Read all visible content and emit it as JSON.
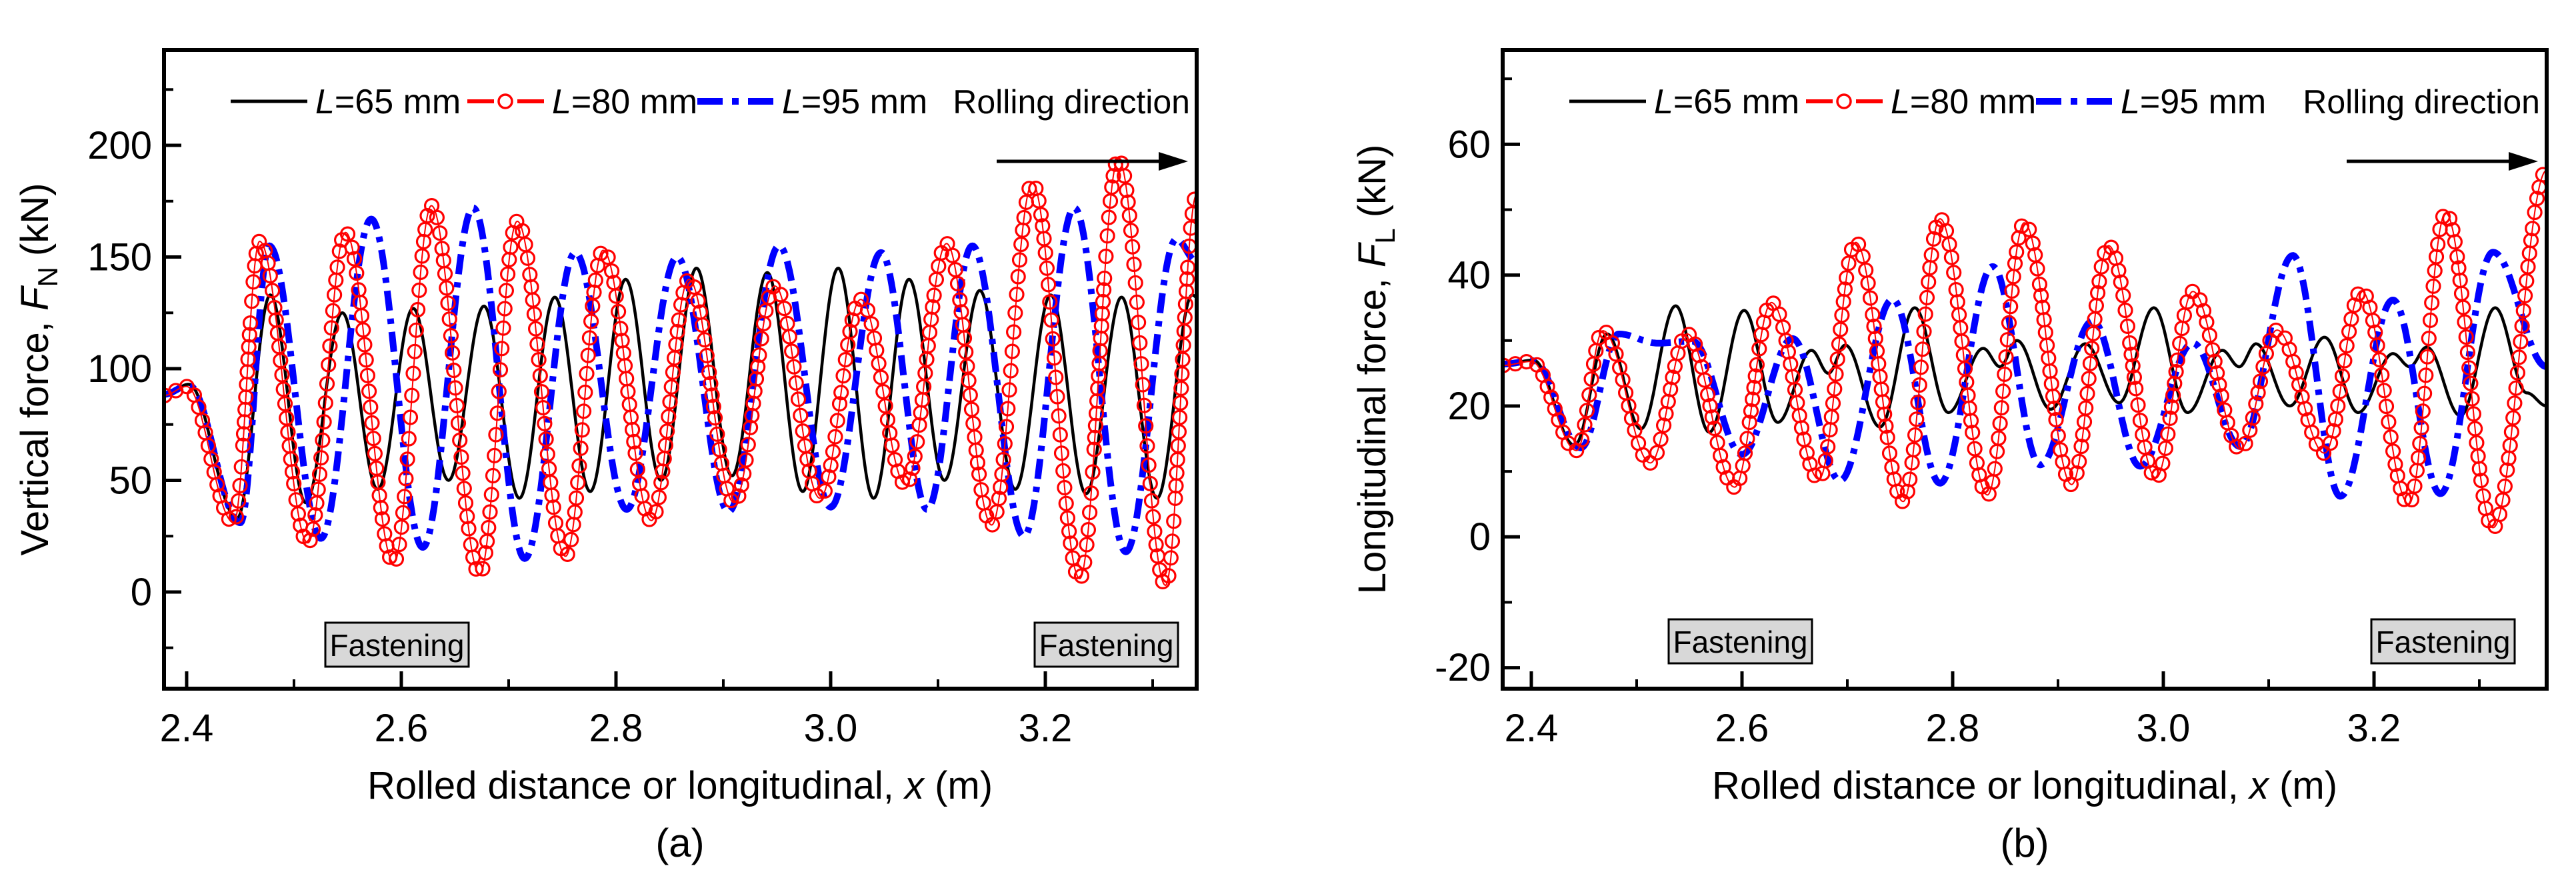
{
  "chart_data": {
    "type": "line",
    "figure_background": "#ffffff",
    "panels": [
      {
        "caption": "(a)",
        "x_axis": {
          "title_prefix": "Rolled distance or longitudinal, ",
          "title_symbol": "x",
          "title_suffix": " (m)",
          "tick_labels": [
            "2.4",
            "2.6",
            "2.8",
            "3.0",
            "3.2"
          ],
          "tick_values": [
            2.4,
            2.6,
            2.8,
            3.0,
            3.2
          ],
          "minor_tick_values": [
            2.5,
            2.7,
            2.9,
            3.1,
            3.3
          ],
          "range": [
            2.3789,
            3.341
          ]
        },
        "y_axis": {
          "title_prefix": "Vertical force, ",
          "title_symbol": "F",
          "title_sub": "N",
          "title_suffix": " (kN)",
          "tick_labels": [
            "0",
            "50",
            "100",
            "150",
            "200"
          ],
          "tick_values": [
            0,
            50,
            100,
            150,
            200
          ],
          "minor_tick_values": [
            -25,
            25,
            75,
            125,
            175,
            225
          ],
          "range": [
            -43.3,
            242.7
          ]
        },
        "annotations": {
          "rolling_direction": "Rolling direction",
          "fastening_label": "Fastening",
          "fastening_boxes_x": [
            2.596,
            3.257
          ],
          "fastening_box_y": -23.6
        },
        "series": [
          {
            "name": "L=65 mm",
            "label_symbol": "L",
            "label_rest": "=65 mm",
            "color": "#000000",
            "style": "solid",
            "points": [
              [
                2.3789,
                88
              ],
              [
                2.402,
                93
              ],
              [
                2.447,
                33
              ],
              [
                2.478,
                133
              ],
              [
                2.511,
                40
              ],
              [
                2.545,
                125
              ],
              [
                2.578,
                46
              ],
              [
                2.611,
                127
              ],
              [
                2.644,
                50
              ],
              [
                2.677,
                128
              ],
              [
                2.71,
                42
              ],
              [
                2.743,
                132
              ],
              [
                2.776,
                45
              ],
              [
                2.809,
                140
              ],
              [
                2.842,
                50
              ],
              [
                2.875,
                145
              ],
              [
                2.908,
                52
              ],
              [
                2.941,
                143
              ],
              [
                2.974,
                45
              ],
              [
                3.007,
                145
              ],
              [
                3.04,
                42
              ],
              [
                3.073,
                140
              ],
              [
                3.106,
                50
              ],
              [
                3.139,
                135
              ],
              [
                3.172,
                46
              ],
              [
                3.205,
                133
              ],
              [
                3.238,
                44
              ],
              [
                3.271,
                132
              ],
              [
                3.304,
                42
              ],
              [
                3.337,
                133
              ],
              [
                3.341,
                132
              ]
            ]
          },
          {
            "name": "L=80 mm",
            "label_symbol": "L",
            "label_rest": "=80 mm",
            "color": "#ff0000",
            "style": "circles",
            "points": [
              [
                2.3789,
                88
              ],
              [
                2.4,
                92
              ],
              [
                2.444,
                31
              ],
              [
                2.468,
                157
              ],
              [
                2.513,
                22
              ],
              [
                2.548,
                161
              ],
              [
                2.593,
                13
              ],
              [
                2.628,
                173
              ],
              [
                2.673,
                8
              ],
              [
                2.708,
                166
              ],
              [
                2.753,
                16
              ],
              [
                2.788,
                153
              ],
              [
                2.833,
                32
              ],
              [
                2.868,
                140
              ],
              [
                2.91,
                40
              ],
              [
                2.948,
                137
              ],
              [
                2.99,
                42
              ],
              [
                3.028,
                131
              ],
              [
                3.07,
                48
              ],
              [
                3.108,
                156
              ],
              [
                3.15,
                30
              ],
              [
                3.188,
                183
              ],
              [
                3.232,
                6
              ],
              [
                3.268,
                194
              ],
              [
                3.312,
                3
              ],
              [
                3.341,
                178
              ]
            ]
          },
          {
            "name": "L=95 mm",
            "label_symbol": "L",
            "label_rest": "=95 mm",
            "color": "#0000ff",
            "style": "dash-dot",
            "points": [
              [
                2.3789,
                88.5
              ],
              [
                2.402,
                92.5
              ],
              [
                2.45,
                31
              ],
              [
                2.477,
                155
              ],
              [
                2.525,
                24
              ],
              [
                2.572,
                167
              ],
              [
                2.62,
                20
              ],
              [
                2.667,
                172
              ],
              [
                2.715,
                15
              ],
              [
                2.762,
                152
              ],
              [
                2.81,
                37
              ],
              [
                2.857,
                150
              ],
              [
                2.905,
                36
              ],
              [
                2.952,
                155
              ],
              [
                3.0,
                38
              ],
              [
                3.047,
                152
              ],
              [
                3.09,
                37
              ],
              [
                3.132,
                155
              ],
              [
                3.18,
                25
              ],
              [
                3.227,
                172
              ],
              [
                3.275,
                18
              ],
              [
                3.322,
                158
              ],
              [
                3.341,
                148
              ]
            ]
          }
        ]
      },
      {
        "caption": "(b)",
        "x_axis": {
          "title_prefix": "Rolled distance or longitudinal, ",
          "title_symbol": "x",
          "title_suffix": " (m)",
          "tick_labels": [
            "2.4",
            "2.6",
            "2.8",
            "3.0",
            "3.2"
          ],
          "tick_values": [
            2.4,
            2.6,
            2.8,
            3.0,
            3.2
          ],
          "minor_tick_values": [
            2.5,
            2.7,
            2.9,
            3.1,
            3.3
          ],
          "range": [
            2.3728,
            3.3639
          ]
        },
        "y_axis": {
          "title_prefix": "Longitudinal force, ",
          "title_symbol": "F",
          "title_sub": "L",
          "title_suffix": " (kN)",
          "tick_labels": [
            "-20",
            "0",
            "20",
            "40",
            "60"
          ],
          "tick_values": [
            -20,
            0,
            20,
            40,
            60
          ],
          "minor_tick_values": [
            -10,
            10,
            30,
            50,
            70
          ],
          "range": [
            -23.2,
            74.4
          ]
        },
        "annotations": {
          "rolling_direction": "Rolling direction",
          "fastening_label": "Fastening",
          "fastening_boxes_x": [
            2.599,
            3.266
          ],
          "fastening_box_y": -16
        },
        "series": [
          {
            "name": "L=65 mm",
            "label_symbol": "L",
            "label_rest": "=65 mm",
            "color": "#000000",
            "style": "solid",
            "points": [
              [
                2.3728,
                26.3
              ],
              [
                2.402,
                27
              ],
              [
                2.441,
                14
              ],
              [
                2.472,
                31
              ],
              [
                2.504,
                16.5
              ],
              [
                2.537,
                35.3
              ],
              [
                2.569,
                16
              ],
              [
                2.602,
                34.6
              ],
              [
                2.634,
                17.5
              ],
              [
                2.666,
                28.5
              ],
              [
                2.682,
                25
              ],
              [
                2.698,
                29.3
              ],
              [
                2.731,
                16.8
              ],
              [
                2.764,
                35
              ],
              [
                2.796,
                19
              ],
              [
                2.829,
                28.8
              ],
              [
                2.845,
                26
              ],
              [
                2.861,
                30
              ],
              [
                2.893,
                19.5
              ],
              [
                2.926,
                29.5
              ],
              [
                2.958,
                20.5
              ],
              [
                2.991,
                35
              ],
              [
                3.023,
                19
              ],
              [
                3.056,
                28.5
              ],
              [
                3.072,
                26
              ],
              [
                3.088,
                29.5
              ],
              [
                3.12,
                20
              ],
              [
                3.153,
                30.5
              ],
              [
                3.185,
                19
              ],
              [
                3.218,
                28
              ],
              [
                3.234,
                26
              ],
              [
                3.25,
                29
              ],
              [
                3.282,
                18.5
              ],
              [
                3.315,
                35
              ],
              [
                3.345,
                22
              ],
              [
                3.3639,
                20
              ]
            ]
          },
          {
            "name": "L=80 mm",
            "label_symbol": "L",
            "label_rest": "=80 mm",
            "color": "#ff0000",
            "style": "circles",
            "points": [
              [
                2.3728,
                26.2
              ],
              [
                2.4,
                26.8
              ],
              [
                2.443,
                13.2
              ],
              [
                2.468,
                31.5
              ],
              [
                2.513,
                11.3
              ],
              [
                2.548,
                31
              ],
              [
                2.593,
                7.6
              ],
              [
                2.628,
                35.8
              ],
              [
                2.673,
                8.8
              ],
              [
                2.708,
                45
              ],
              [
                2.753,
                5.4
              ],
              [
                2.788,
                48.6
              ],
              [
                2.833,
                6.4
              ],
              [
                2.868,
                48
              ],
              [
                2.913,
                8
              ],
              [
                2.948,
                44.5
              ],
              [
                2.993,
                9
              ],
              [
                3.028,
                37.5
              ],
              [
                3.073,
                13.4
              ],
              [
                3.108,
                31.6
              ],
              [
                3.153,
                12.8
              ],
              [
                3.188,
                37.6
              ],
              [
                3.233,
                5
              ],
              [
                3.268,
                49.5
              ],
              [
                3.313,
                1.4
              ],
              [
                3.3639,
                56
              ]
            ]
          },
          {
            "name": "L=95 mm",
            "label_symbol": "L",
            "label_rest": "=95 mm",
            "color": "#0000ff",
            "style": "dash-dot",
            "points": [
              [
                2.3728,
                26.4
              ],
              [
                2.402,
                26.9
              ],
              [
                2.447,
                13.6
              ],
              [
                2.483,
                31
              ],
              [
                2.52,
                29.6
              ],
              [
                2.553,
                29.9
              ],
              [
                2.6,
                12.6
              ],
              [
                2.648,
                30.3
              ],
              [
                2.693,
                8.6
              ],
              [
                2.743,
                36.3
              ],
              [
                2.788,
                8.2
              ],
              [
                2.838,
                41.3
              ],
              [
                2.883,
                11
              ],
              [
                2.933,
                33
              ],
              [
                2.978,
                10.8
              ],
              [
                3.028,
                29.6
              ],
              [
                3.073,
                13.8
              ],
              [
                3.123,
                43
              ],
              [
                3.168,
                6.2
              ],
              [
                3.218,
                36.2
              ],
              [
                3.263,
                6.6
              ],
              [
                3.313,
                43.5
              ],
              [
                3.3639,
                26
              ]
            ]
          }
        ]
      }
    ]
  }
}
